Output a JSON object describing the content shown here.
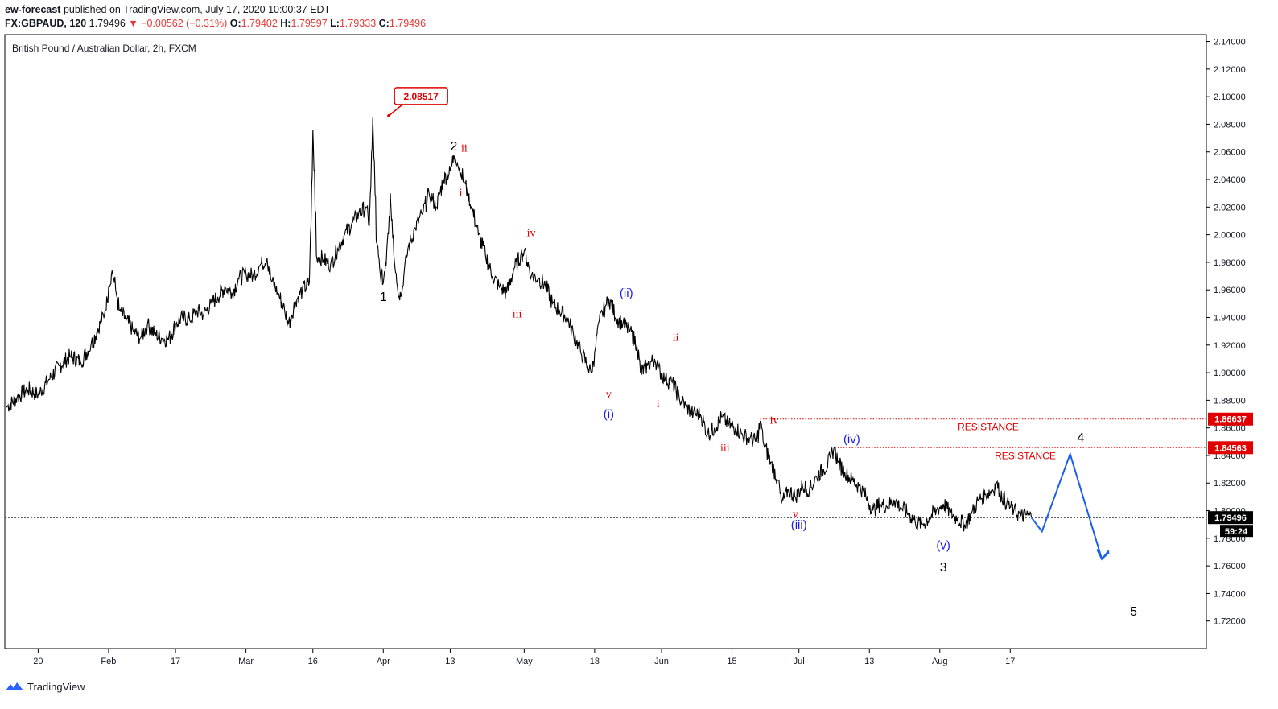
{
  "header": {
    "publisher": "ew-forecast",
    "published_text": "published on TradingView.com, July 17, 2020 10:00:37 EDT",
    "symbol": "FX:GBPAUD, 120",
    "last": "1.79496",
    "change": "−0.00562 (−0.31%)",
    "o_label": "O:",
    "o_val": "1.79402",
    "h_label": "H:",
    "h_val": "1.79597",
    "l_label": "L:",
    "l_val": "1.79333",
    "c_label": "C:",
    "c_val": "1.79496"
  },
  "footer": {
    "brand": "TradingView"
  },
  "colors": {
    "candle": "#000000",
    "wave_red": "#e00000",
    "wave_blue": "#1a1ae6",
    "projection": "#1a5fe6",
    "price_tag": "#000000",
    "resistance_tag": "#e00000"
  },
  "chart_data": {
    "type": "line",
    "title": "British Pound / Australian Dollar, 2h, FXCM",
    "ylim": [
      1.7,
      2.145
    ],
    "yticks": [
      "2.14000",
      "2.12000",
      "2.10000",
      "2.08000",
      "2.06000",
      "2.04000",
      "2.02000",
      "2.00000",
      "1.98000",
      "1.96000",
      "1.94000",
      "1.92000",
      "1.90000",
      "1.88000",
      "1.86000",
      "1.84000",
      "1.82000",
      "1.80000",
      "1.78000",
      "1.76000",
      "1.74000",
      "1.72000"
    ],
    "x_tick_labels": [
      "20",
      "Feb",
      "17",
      "Mar",
      "16",
      "Apr",
      "13",
      "May",
      "18",
      "Jun",
      "15",
      "Jul",
      "13",
      "Aug",
      "17"
    ],
    "series": [
      {
        "name": "GBPAUD",
        "points": [
          [
            0,
            1.875
          ],
          [
            3,
            1.882
          ],
          [
            6,
            1.888
          ],
          [
            9,
            1.884
          ],
          [
            12,
            1.895
          ],
          [
            15,
            1.905
          ],
          [
            18,
            1.912
          ],
          [
            21,
            1.908
          ],
          [
            24,
            1.92
          ],
          [
            26,
            1.932
          ],
          [
            28,
            1.945
          ],
          [
            29,
            1.962
          ],
          [
            30,
            1.974
          ],
          [
            31,
            1.96
          ],
          [
            32,
            1.945
          ],
          [
            34,
            1.938
          ],
          [
            36,
            1.93
          ],
          [
            38,
            1.925
          ],
          [
            40,
            1.935
          ],
          [
            42,
            1.928
          ],
          [
            44,
            1.925
          ],
          [
            46,
            1.924
          ],
          [
            48,
            1.935
          ],
          [
            50,
            1.94
          ],
          [
            52,
            1.938
          ],
          [
            54,
            1.945
          ],
          [
            56,
            1.942
          ],
          [
            58,
            1.95
          ],
          [
            60,
            1.955
          ],
          [
            62,
            1.962
          ],
          [
            64,
            1.958
          ],
          [
            66,
            1.968
          ],
          [
            68,
            1.972
          ],
          [
            70,
            1.97
          ],
          [
            72,
            1.978
          ],
          [
            74,
            1.983
          ],
          [
            75,
            1.968
          ],
          [
            77,
            1.958
          ],
          [
            79,
            1.945
          ],
          [
            80,
            1.935
          ],
          [
            81,
            1.942
          ],
          [
            82,
            1.952
          ],
          [
            84,
            1.96
          ],
          [
            86,
            1.965
          ],
          [
            87,
            2.076
          ],
          [
            88,
            1.985
          ],
          [
            90,
            1.982
          ],
          [
            92,
            1.978
          ],
          [
            94,
            1.99
          ],
          [
            96,
            2.0
          ],
          [
            98,
            2.008
          ],
          [
            100,
            2.015
          ],
          [
            102,
            2.02
          ],
          [
            103,
            2.006
          ],
          [
            104,
            2.085
          ],
          [
            105,
            1.995
          ],
          [
            106,
            1.975
          ],
          [
            107,
            1.965
          ],
          [
            108,
            1.99
          ],
          [
            109,
            2.03
          ],
          [
            110,
            1.985
          ],
          [
            111,
            1.962
          ],
          [
            112,
            1.955
          ],
          [
            113,
            1.975
          ],
          [
            114,
            1.99
          ],
          [
            116,
            2.005
          ],
          [
            118,
            2.015
          ],
          [
            120,
            2.03
          ],
          [
            122,
            2.02
          ],
          [
            124,
            2.04
          ],
          [
            126,
            2.046
          ],
          [
            127,
            2.058
          ],
          [
            128,
            2.052
          ],
          [
            129,
            2.045
          ],
          [
            130,
            2.038
          ],
          [
            132,
            2.02
          ],
          [
            134,
            2.0
          ],
          [
            136,
            1.985
          ],
          [
            138,
            1.97
          ],
          [
            140,
            1.962
          ],
          [
            142,
            1.958
          ],
          [
            144,
            1.975
          ],
          [
            146,
            1.985
          ],
          [
            147,
            1.988
          ],
          [
            149,
            1.97
          ],
          [
            151,
            1.968
          ],
          [
            153,
            1.963
          ],
          [
            155,
            1.95
          ],
          [
            157,
            1.945
          ],
          [
            159,
            1.94
          ],
          [
            161,
            1.928
          ],
          [
            163,
            1.915
          ],
          [
            165,
            1.905
          ],
          [
            166,
            1.9
          ],
          [
            167,
            1.915
          ],
          [
            168,
            1.935
          ],
          [
            170,
            1.948
          ],
          [
            171,
            1.954
          ],
          [
            173,
            1.94
          ],
          [
            175,
            1.935
          ],
          [
            177,
            1.93
          ],
          [
            179,
            1.92
          ],
          [
            180,
            1.9
          ],
          [
            182,
            1.905
          ],
          [
            184,
            1.91
          ],
          [
            185,
            1.903
          ],
          [
            187,
            1.895
          ],
          [
            189,
            1.893
          ],
          [
            191,
            1.882
          ],
          [
            193,
            1.875
          ],
          [
            195,
            1.87
          ],
          [
            197,
            1.87
          ],
          [
            199,
            1.855
          ],
          [
            201,
            1.86
          ],
          [
            203,
            1.868
          ],
          [
            205,
            1.862
          ],
          [
            207,
            1.86
          ],
          [
            209,
            1.855
          ],
          [
            211,
            1.852
          ],
          [
            213,
            1.85
          ],
          [
            214,
            1.865
          ],
          [
            215,
            1.848
          ],
          [
            217,
            1.835
          ],
          [
            219,
            1.822
          ],
          [
            220,
            1.805
          ],
          [
            222,
            1.815
          ],
          [
            224,
            1.81
          ],
          [
            226,
            1.818
          ],
          [
            228,
            1.815
          ],
          [
            230,
            1.825
          ],
          [
            232,
            1.83
          ],
          [
            234,
            1.838
          ],
          [
            235,
            1.846
          ],
          [
            236,
            1.835
          ],
          [
            238,
            1.828
          ],
          [
            240,
            1.822
          ],
          [
            242,
            1.818
          ],
          [
            244,
            1.81
          ],
          [
            246,
            1.8
          ],
          [
            248,
            1.805
          ],
          [
            250,
            1.803
          ],
          [
            252,
            1.808
          ],
          [
            254,
            1.802
          ],
          [
            256,
            1.798
          ],
          [
            258,
            1.792
          ],
          [
            260,
            1.79
          ],
          [
            262,
            1.795
          ],
          [
            264,
            1.8
          ],
          [
            266,
            1.805
          ],
          [
            268,
            1.798
          ],
          [
            270,
            1.794
          ],
          [
            272,
            1.79
          ],
          [
            274,
            1.798
          ],
          [
            276,
            1.808
          ],
          [
            278,
            1.812
          ],
          [
            280,
            1.815
          ],
          [
            281,
            1.82
          ],
          [
            282,
            1.813
          ],
          [
            284,
            1.805
          ],
          [
            286,
            1.8
          ],
          [
            288,
            1.796
          ],
          [
            290,
            1.797
          ],
          [
            291,
            1.795
          ]
        ]
      },
      {
        "name": "projection",
        "points": [
          [
            291,
            1.795
          ],
          [
            294,
            1.785
          ],
          [
            302,
            1.841
          ],
          [
            311,
            1.765
          ],
          [
            313,
            1.771
          ]
        ]
      }
    ],
    "last_price": "1.79496",
    "countdown": "59:24",
    "high_marker": "2.08517",
    "levels": [
      {
        "value": 1.86637,
        "label": "1.86637",
        "text": "RESISTANCE"
      },
      {
        "value": 1.84563,
        "label": "1.84563",
        "text": "RESISTANCE"
      }
    ],
    "wave_labels": [
      {
        "text": "1",
        "x": 107,
        "y": 1.952,
        "color": "black"
      },
      {
        "text": "2",
        "x": 127,
        "y": 2.061,
        "color": "black"
      },
      {
        "text": "ii",
        "x": 130,
        "y": 2.06,
        "color": "red"
      },
      {
        "text": "i",
        "x": 129,
        "y": 2.028,
        "color": "red"
      },
      {
        "text": "iv",
        "x": 149,
        "y": 1.999,
        "color": "red"
      },
      {
        "text": "iii",
        "x": 145,
        "y": 1.94,
        "color": "red"
      },
      {
        "text": "v",
        "x": 171,
        "y": 1.882,
        "color": "red"
      },
      {
        "text": "(i)",
        "x": 171,
        "y": 1.867,
        "color": "blue"
      },
      {
        "text": "(ii)",
        "x": 176,
        "y": 1.955,
        "color": "blue"
      },
      {
        "text": "ii",
        "x": 190,
        "y": 1.923,
        "color": "red"
      },
      {
        "text": "i",
        "x": 185,
        "y": 1.875,
        "color": "red"
      },
      {
        "text": "iii",
        "x": 204,
        "y": 1.843,
        "color": "red"
      },
      {
        "text": "iv",
        "x": 218,
        "y": 1.863,
        "color": "red"
      },
      {
        "text": "v",
        "x": 224,
        "y": 1.795,
        "color": "red"
      },
      {
        "text": "(iii)",
        "x": 225,
        "y": 1.787,
        "color": "blue"
      },
      {
        "text": "(iv)",
        "x": 240,
        "y": 1.849,
        "color": "blue"
      },
      {
        "text": "(v)",
        "x": 266,
        "y": 1.772,
        "color": "blue"
      },
      {
        "text": "3",
        "x": 266,
        "y": 1.756,
        "color": "black"
      },
      {
        "text": "4",
        "x": 305,
        "y": 1.85,
        "color": "black"
      },
      {
        "text": "5",
        "x": 320,
        "y": 1.724,
        "color": "black"
      }
    ]
  }
}
